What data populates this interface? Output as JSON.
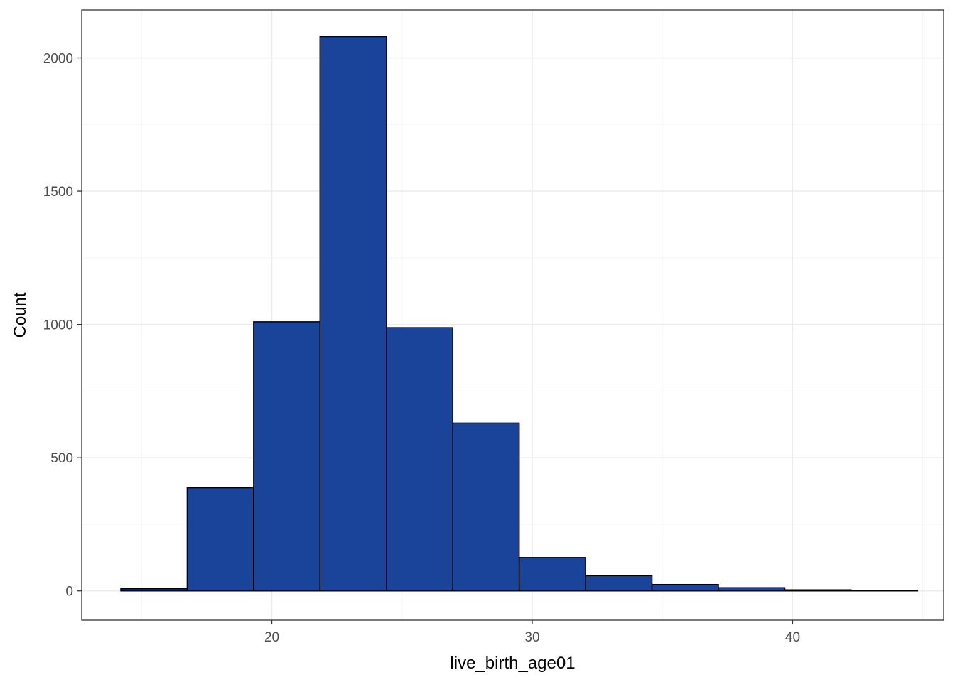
{
  "chart_data": {
    "type": "bar",
    "subtype": "histogram",
    "xlabel": "live_birth_age01",
    "ylabel": "Count",
    "xlim": [
      12.7,
      45.8
    ],
    "ylim": [
      -110,
      2180
    ],
    "x_ticks": [
      20,
      30,
      40
    ],
    "y_ticks": [
      0,
      500,
      1000,
      1500,
      2000
    ],
    "x_minor": [
      15,
      25,
      35,
      45
    ],
    "y_minor": [
      250,
      750,
      1250,
      1750
    ],
    "bins": [
      {
        "x0": 14.2,
        "x1": 16.75,
        "count": 8
      },
      {
        "x0": 16.75,
        "x1": 19.3,
        "count": 387
      },
      {
        "x0": 19.3,
        "x1": 21.85,
        "count": 1010
      },
      {
        "x0": 21.85,
        "x1": 24.4,
        "count": 2080
      },
      {
        "x0": 24.4,
        "x1": 26.95,
        "count": 988
      },
      {
        "x0": 26.95,
        "x1": 29.5,
        "count": 630
      },
      {
        "x0": 29.5,
        "x1": 32.05,
        "count": 125
      },
      {
        "x0": 32.05,
        "x1": 34.6,
        "count": 57
      },
      {
        "x0": 34.6,
        "x1": 37.15,
        "count": 24
      },
      {
        "x0": 37.15,
        "x1": 39.7,
        "count": 12
      },
      {
        "x0": 39.7,
        "x1": 42.25,
        "count": 4
      },
      {
        "x0": 42.25,
        "x1": 44.8,
        "count": 2
      }
    ],
    "fill_color": "#1a4499",
    "outline_color": "#000000",
    "grid": true,
    "legend": "none"
  }
}
